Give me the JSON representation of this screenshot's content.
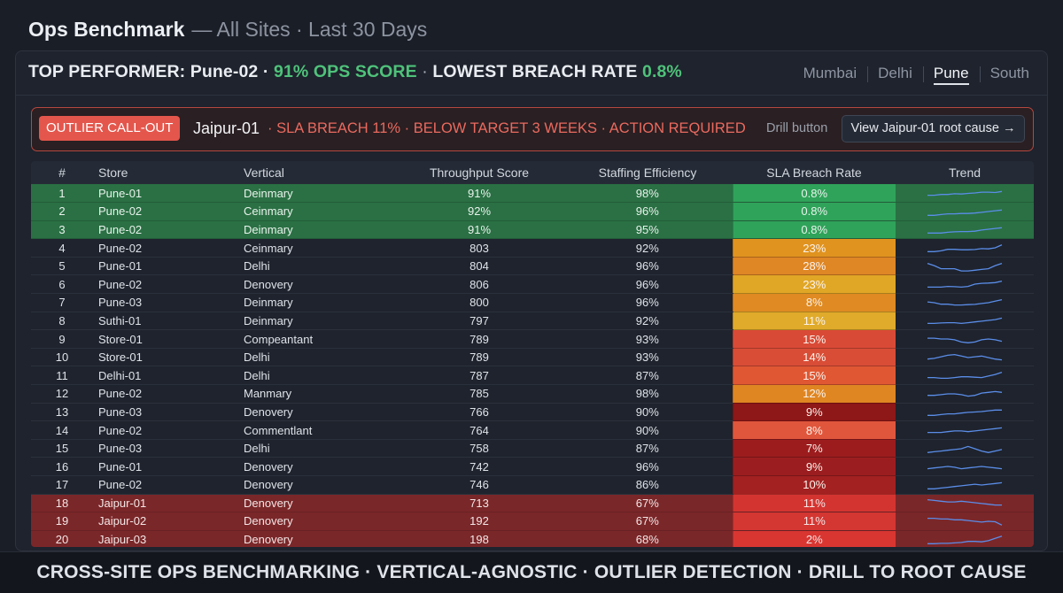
{
  "header": {
    "title": "Ops Benchmark",
    "subtitle": "— All Sites · Last 30 Days"
  },
  "top_performer": {
    "prefix": "TOP PERFORMER: Pune-02 ·",
    "ops_score": "91% OPS SCORE",
    "sep": "·",
    "breach_label": "LOWEST BREACH RATE",
    "breach_value": "0.8%"
  },
  "site_tabs": [
    {
      "label": "Mumbai",
      "active": false
    },
    {
      "label": "Delhi",
      "active": false
    },
    {
      "label": "Pune",
      "active": true
    },
    {
      "label": "South",
      "active": false
    }
  ],
  "callout": {
    "badge": "OUTLIER CALL-OUT",
    "store": "Jaipur-01",
    "message": "· SLA BREACH 11% · BELOW TARGET 3 WEEKS · ACTION REQUIRED",
    "drill_label": "Drill button",
    "drill_button": "View Jaipur-01 root cause →"
  },
  "table": {
    "columns": [
      "#",
      "Store",
      "Vertical",
      "Throughput Score",
      "Staffing Efficiency",
      "SLA Breach Rate",
      "Trend"
    ],
    "rows": [
      {
        "n": "1",
        "store": "Pune-01",
        "vertical": "Deinmary",
        "throughput": "91%",
        "staffing": "98%",
        "breach": "0.8%",
        "band": "green",
        "breach_color": "#2fa35a",
        "trend": [
          5,
          5,
          4.5,
          4.5,
          4,
          4.2,
          3.8,
          3.5,
          3,
          3,
          3.2,
          2.5
        ]
      },
      {
        "n": "2",
        "store": "Pune-02",
        "vertical": "Ceinmary",
        "throughput": "92%",
        "staffing": "96%",
        "breach": "0.8%",
        "band": "green",
        "breach_color": "#2fa35a",
        "trend": [
          6,
          6,
          5.5,
          5,
          5,
          4.8,
          4.8,
          4.5,
          4,
          3.5,
          3,
          2.5
        ]
      },
      {
        "n": "3",
        "store": "Pune-02",
        "vertical": "Deinmary",
        "throughput": "91%",
        "staffing": "95%",
        "breach": "0.8%",
        "band": "green",
        "breach_color": "#2fa35a",
        "trend": [
          6,
          6,
          6,
          5.5,
          5.2,
          5,
          5,
          4.8,
          4,
          3.5,
          3,
          2.5
        ]
      },
      {
        "n": "4",
        "store": "Pune-02",
        "vertical": "Ceinmary",
        "throughput": "803",
        "staffing": "92%",
        "breach": "23%",
        "band": "plain",
        "breach_color": "#e0931f",
        "trend": [
          6,
          6,
          5.5,
          4.5,
          4.5,
          4.8,
          4.8,
          4.6,
          4,
          4.2,
          3.5,
          1.5
        ]
      },
      {
        "n": "5",
        "store": "Pune-01",
        "vertical": "Delhi",
        "throughput": "804",
        "staffing": "96%",
        "breach": "28%",
        "band": "plain",
        "breach_color": "#df8625",
        "trend": [
          1.5,
          3,
          5,
          5,
          5,
          6.5,
          6.5,
          6,
          5.5,
          5,
          3,
          1.5
        ]
      },
      {
        "n": "6",
        "store": "Pune-02",
        "vertical": "Denovery",
        "throughput": "806",
        "staffing": "96%",
        "breach": "23%",
        "band": "plain",
        "breach_color": "#e0a626",
        "trend": [
          5.5,
          5.5,
          5.5,
          5,
          5.2,
          5.5,
          5,
          3.5,
          3,
          2.8,
          2.5,
          1.5
        ]
      },
      {
        "n": "7",
        "store": "Pune-03",
        "vertical": "Deinmary",
        "throughput": "800",
        "staffing": "96%",
        "breach": "8%",
        "band": "plain",
        "breach_color": "#df8a22",
        "trend": [
          3,
          3.5,
          4.5,
          4.5,
          5,
          5,
          4.8,
          4.6,
          4,
          3.5,
          2.5,
          1.5
        ]
      },
      {
        "n": "8",
        "store": "Suthi-01",
        "vertical": "Deinmary",
        "throughput": "797",
        "staffing": "92%",
        "breach": "11%",
        "band": "plain",
        "breach_color": "#e0ab2a",
        "trend": [
          5.5,
          5.5,
          5.2,
          5,
          5,
          5.5,
          5,
          4.5,
          4,
          3.5,
          3,
          2
        ]
      },
      {
        "n": "9",
        "store": "Store-01",
        "vertical": "Compeantant",
        "throughput": "789",
        "staffing": "93%",
        "breach": "15%",
        "band": "plain",
        "breach_color": "#d94a36",
        "trend": [
          3,
          3,
          3.5,
          3.5,
          4,
          5.5,
          6,
          5.5,
          4,
          3.5,
          4,
          5
        ]
      },
      {
        "n": "10",
        "store": "Store-01",
        "vertical": "Delhi",
        "throughput": "789",
        "staffing": "93%",
        "breach": "14%",
        "band": "plain",
        "breach_color": "#d94d36",
        "trend": [
          4.5,
          4,
          3,
          2,
          1.5,
          2.5,
          3.5,
          3,
          2.5,
          3.5,
          4.5,
          5
        ]
      },
      {
        "n": "11",
        "store": "Delhi-01",
        "vertical": "Delhi",
        "throughput": "787",
        "staffing": "87%",
        "breach": "15%",
        "band": "plain",
        "breach_color": "#e05733",
        "trend": [
          5,
          5,
          5.5,
          5.5,
          5,
          4.5,
          4.5,
          4.8,
          5,
          4,
          3,
          1.5
        ]
      },
      {
        "n": "12",
        "store": "Pune-02",
        "vertical": "Manmary",
        "throughput": "785",
        "staffing": "98%",
        "breach": "12%",
        "band": "plain",
        "breach_color": "#df8622",
        "trend": [
          4.5,
          4.5,
          4,
          3.5,
          3.5,
          4,
          5,
          4.5,
          3,
          2.5,
          2,
          2.5
        ]
      },
      {
        "n": "13",
        "store": "Pune-03",
        "vertical": "Denovery",
        "throughput": "766",
        "staffing": "90%",
        "breach": "9%",
        "band": "plain",
        "breach_color": "#8e1717",
        "trend": [
          6,
          6,
          5.5,
          5,
          5,
          4.5,
          4,
          3.8,
          3.5,
          3,
          2.5,
          2.5
        ]
      },
      {
        "n": "14",
        "store": "Pune-02",
        "vertical": "Commentlant",
        "throughput": "764",
        "staffing": "90%",
        "breach": "8%",
        "band": "plain",
        "breach_color": "#e0563c",
        "trend": [
          5,
          5,
          5,
          4.5,
          4,
          4,
          4.5,
          4,
          3.5,
          3,
          2.5,
          2
        ]
      },
      {
        "n": "15",
        "store": "Pune-03",
        "vertical": "Delhi",
        "throughput": "758",
        "staffing": "87%",
        "breach": "7%",
        "band": "plain",
        "breach_color": "#9c1c1e",
        "trend": [
          6,
          5.5,
          5,
          4.5,
          4,
          3.5,
          2,
          3.5,
          5,
          6,
          5,
          4
        ]
      },
      {
        "n": "16",
        "store": "Pune-01",
        "vertical": "Denovery",
        "throughput": "742",
        "staffing": "96%",
        "breach": "9%",
        "band": "plain",
        "breach_color": "#9c1d1f",
        "trend": [
          5,
          4.5,
          4,
          3.5,
          4,
          5,
          4.5,
          4,
          3.5,
          4,
          4.5,
          5
        ]
      },
      {
        "n": "17",
        "store": "Pune-02",
        "vertical": "Denovery",
        "throughput": "746",
        "staffing": "86%",
        "breach": "10%",
        "band": "plain",
        "breach_color": "#a32121",
        "trend": [
          6,
          6,
          5.5,
          5,
          4.5,
          4,
          3.5,
          3,
          3.5,
          3,
          2.5,
          2
        ]
      },
      {
        "n": "18",
        "store": "Jaipur-01",
        "vertical": "Denovery",
        "throughput": "713",
        "staffing": "67%",
        "breach": "11%",
        "band": "red",
        "breach_color": "#d43430",
        "trend": [
          1.5,
          2,
          2.5,
          3,
          3,
          2.5,
          3,
          3.5,
          4,
          4.5,
          5,
          5
        ]
      },
      {
        "n": "19",
        "store": "Jaipur-02",
        "vertical": "Denovery",
        "throughput": "192",
        "staffing": "67%",
        "breach": "11%",
        "band": "red",
        "breach_color": "#d43632",
        "trend": [
          1.5,
          1.5,
          2,
          2,
          2.5,
          2.5,
          3,
          3.5,
          4,
          3.5,
          3.8,
          6
        ]
      },
      {
        "n": "20",
        "store": "Jaipur-03",
        "vertical": "Denovery",
        "throughput": "198",
        "staffing": "68%",
        "breach": "2%",
        "band": "red",
        "breach_color": "#d93632",
        "trend": [
          6,
          6,
          5.8,
          5.8,
          5.5,
          5.2,
          4.5,
          4.5,
          4.8,
          4,
          2.5,
          1
        ]
      }
    ]
  },
  "colors": {
    "accent_green": "#4fc27a",
    "alert_red": "#e4564c",
    "trend_line": "#5b8de8"
  },
  "footer": {
    "text": "CROSS-SITE OPS BENCHMARKING  ·  VERTICAL-AGNOSTIC  ·  OUTLIER DETECTION  ·  DRILL TO ROOT CAUSE"
  }
}
